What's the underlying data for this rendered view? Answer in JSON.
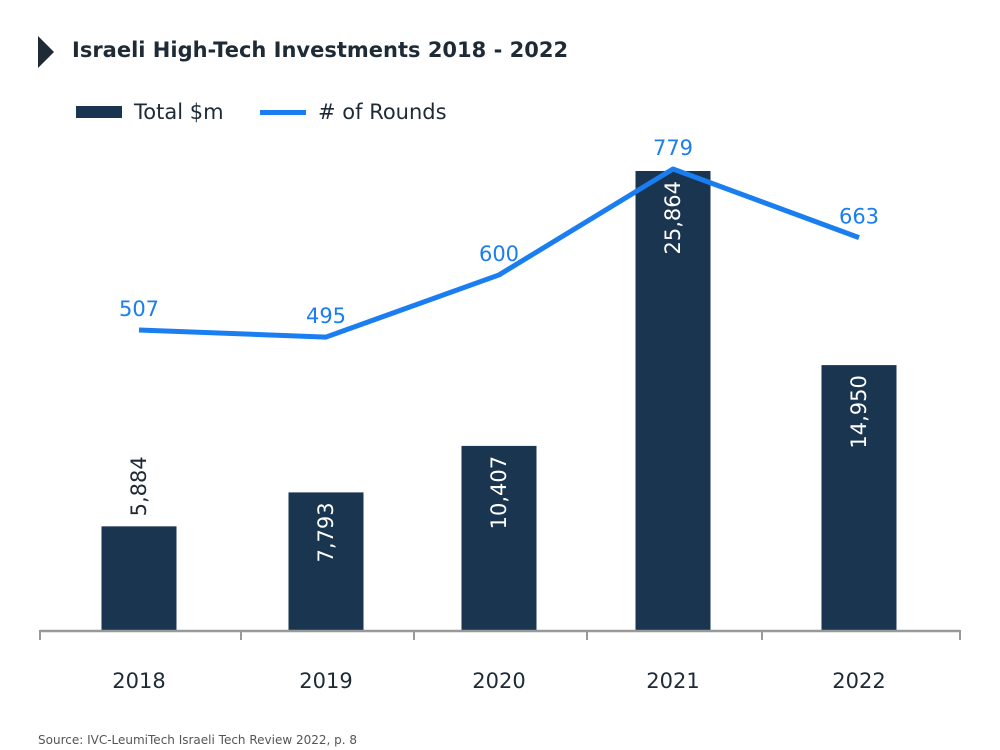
{
  "chart_data": {
    "type": "bar+line",
    "title": "Israeli High-Tech Investments 2018 - 2022",
    "categories": [
      "2018",
      "2019",
      "2020",
      "2021",
      "2022"
    ],
    "series": [
      {
        "name": "Total $m",
        "type": "bar",
        "values": [
          5884,
          7793,
          10407,
          25864,
          14950
        ],
        "labels": [
          "5,884",
          "7,793",
          "10,407",
          "25,864",
          "14,950"
        ],
        "color": "#1a3550"
      },
      {
        "name": "# of Rounds",
        "type": "line",
        "values": [
          507,
          495,
          600,
          779,
          663
        ],
        "labels": [
          "507",
          "495",
          "600",
          "779",
          "663"
        ],
        "color": "#1a7ef0"
      }
    ],
    "legend": "top-left",
    "grid": false,
    "source": "Source: IVC-LeumiTech Israeli Tech Review 2022, p. 8"
  }
}
